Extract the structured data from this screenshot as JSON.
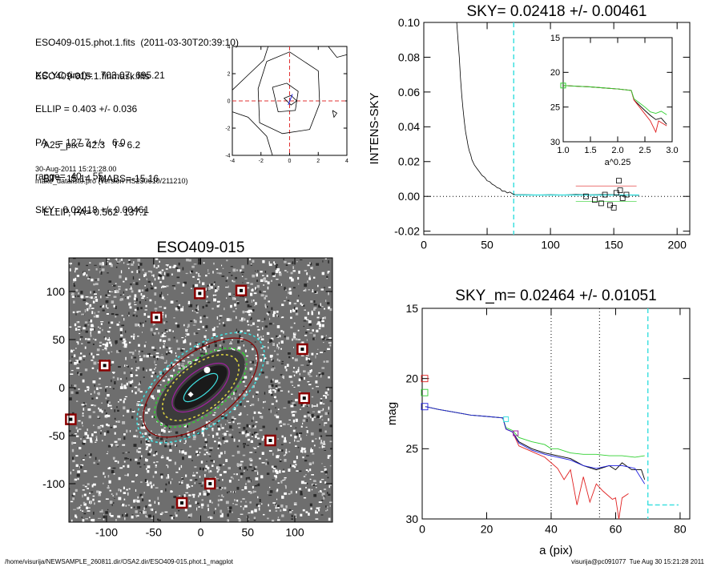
{
  "header_lines": [
    "ESO409-015.phot.1.fits  (2011-03-30T20:39:10)",
    "ESO409-015.1.finmask.fits"
  ],
  "params_lines": [
    "XC,YC (iraf)=   703.07, 695.21",
    "ELLIP = 0.403 +/- 0.036",
    "PA    = 127.7 +/-   6.0",
    "range=  40.-  55.",
    "SKY= 0.02418 +/- 0.00461"
  ],
  "results_lines": [
    "A25_pix= 42.3   T= 6.2",
    "BT=  15.14   MABS=-15.16",
    "ELLIP, PA= 0.562  137.1"
  ],
  "date_line": "30-Aug-2011 15:21:28.00",
  "program_line": "make_datalist0.pro (version HS230610/211210)",
  "footer_left": "/home/visurija/NEWSAMPLE_260811.dir/OSA2.dir/ESO409-015.phot.1_magplot",
  "footer_right": "visurija@pc091077  Tue Aug 30 15:21:28 2011",
  "colors": {
    "red": "#e02020",
    "green": "#30d030",
    "blue": "#2020e0",
    "cyan": "#40e0e0",
    "black": "#000000",
    "maroon": "#8b0000",
    "purple": "#a020a0"
  },
  "chart_data": [
    {
      "id": "contour",
      "type": "line",
      "title": "",
      "xlim": [
        -4,
        4
      ],
      "ylim": [
        -4,
        4
      ],
      "xticks": [
        -4,
        -2,
        0,
        2,
        4
      ],
      "yticks": [
        -4,
        -2,
        0,
        2,
        4
      ],
      "contours": [
        [
          [
            -1.5,
            4
          ],
          [
            -1.8,
            3
          ],
          [
            -2.8,
            2
          ],
          [
            -4,
            0.8
          ]
        ],
        [
          [
            -1.2,
            -4
          ],
          [
            -1.6,
            -2.6
          ],
          [
            -2.9,
            -1.2
          ],
          [
            -4,
            -0.8
          ]
        ],
        [
          [
            -1.6,
            2.9
          ],
          [
            0,
            3.6
          ],
          [
            2,
            2.2
          ],
          [
            2.1,
            -0.2
          ],
          [
            1.4,
            -2.1
          ],
          [
            -0.5,
            -2.4
          ],
          [
            -2.1,
            -1.6
          ],
          [
            -2.2,
            0.9
          ],
          [
            -1.6,
            2.9
          ]
        ],
        [
          [
            -1.2,
            1.0
          ],
          [
            -0.2,
            1.3
          ],
          [
            0.6,
            0.7
          ],
          [
            0.4,
            -0.7
          ],
          [
            -0.8,
            -0.8
          ],
          [
            -1.2,
            1.0
          ]
        ],
        [
          [
            -0.4,
            0.2
          ],
          [
            0.1,
            0.4
          ],
          [
            0.5,
            0
          ],
          [
            0.1,
            -0.3
          ],
          [
            -0.4,
            0.2
          ]
        ],
        [
          [
            3,
            -0.7
          ],
          [
            3.3,
            -0.9
          ],
          [
            3.1,
            -1.2
          ],
          [
            3,
            -0.7
          ]
        ],
        [
          [
            2.7,
            4
          ],
          [
            3.3,
            3.2
          ],
          [
            4,
            3.4
          ]
        ]
      ]
    },
    {
      "id": "sky",
      "type": "line",
      "title": "SKY= 0.02418 +/- 0.00461",
      "xlabel": "",
      "ylabel": "INTENS-SKY",
      "xlim": [
        0,
        210
      ],
      "ylim": [
        -0.022,
        0.1
      ],
      "xticks": [
        0,
        50,
        100,
        150,
        200
      ],
      "yticks": [
        -0.02,
        0.0,
        0.02,
        0.04,
        0.06,
        0.08,
        0.1
      ],
      "ytick_labels": [
        "-0.02",
        "0.00",
        "0.02",
        "0.04",
        "0.06",
        "0.08",
        "0.10"
      ],
      "cyan_line_x": 71,
      "profile": [
        [
          26,
          0.1
        ],
        [
          27,
          0.09
        ],
        [
          28,
          0.08
        ],
        [
          29,
          0.068
        ],
        [
          30,
          0.058
        ],
        [
          31,
          0.05
        ],
        [
          32,
          0.043
        ],
        [
          33,
          0.037
        ],
        [
          34,
          0.033
        ],
        [
          35,
          0.029
        ],
        [
          36,
          0.026
        ],
        [
          37,
          0.024
        ],
        [
          38,
          0.021
        ],
        [
          40,
          0.018
        ],
        [
          42,
          0.016
        ],
        [
          44,
          0.014
        ],
        [
          46,
          0.012
        ],
        [
          48,
          0.011
        ],
        [
          50,
          0.009
        ],
        [
          52,
          0.0085
        ],
        [
          54,
          0.007
        ],
        [
          56,
          0.0062
        ],
        [
          58,
          0.005
        ],
        [
          60,
          0.0045
        ],
        [
          62,
          0.003
        ],
        [
          64,
          0.003
        ],
        [
          66,
          0.002
        ],
        [
          68,
          0.0025
        ],
        [
          70,
          0.0015
        ],
        [
          72,
          0.001
        ],
        [
          80,
          0.001
        ],
        [
          90,
          0.0008
        ],
        [
          100,
          0.001
        ],
        [
          110,
          0.0008
        ],
        [
          120,
          0.0012
        ],
        [
          130,
          0.0009
        ],
        [
          140,
          0.0011
        ],
        [
          150,
          0.001
        ],
        [
          160,
          0.0008
        ],
        [
          170,
          0.0005
        ]
      ],
      "sky_squares": [
        [
          128,
          0.0
        ],
        [
          135,
          -0.002
        ],
        [
          140,
          -0.004
        ],
        [
          143,
          0.001
        ],
        [
          147,
          -0.005
        ],
        [
          150,
          -0.0065
        ],
        [
          152,
          0.002
        ],
        [
          155,
          0.0035
        ],
        [
          157,
          -0.001
        ],
        [
          160,
          0.001
        ],
        [
          154,
          0.009
        ]
      ],
      "inset": {
        "xlabel": "a^0.25",
        "xlim": [
          1.0,
          3.0
        ],
        "ylim": [
          30,
          15
        ],
        "xticks": [
          1.0,
          1.5,
          2.0,
          2.5,
          3.0
        ],
        "xtick_labels": [
          "1.0",
          "1.5",
          "2.0",
          "2.5",
          "3.0"
        ],
        "yticks": [
          15,
          20,
          25,
          30
        ],
        "series": [
          {
            "color": "black",
            "points": [
              [
                1.0,
                21.9
              ],
              [
                1.5,
                22.1
              ],
              [
                2.0,
                22.4
              ],
              [
                2.25,
                22.6
              ],
              [
                2.3,
                24
              ],
              [
                2.5,
                25.5
              ],
              [
                2.6,
                26.2
              ],
              [
                2.7,
                26.8
              ],
              [
                2.8,
                26.6
              ],
              [
                2.9,
                27.5
              ]
            ]
          },
          {
            "color": "red",
            "points": [
              [
                1.0,
                21.9
              ],
              [
                1.5,
                22.1
              ],
              [
                2.0,
                22.4
              ],
              [
                2.25,
                22.6
              ],
              [
                2.3,
                24
              ],
              [
                2.5,
                26
              ],
              [
                2.6,
                27
              ],
              [
                2.7,
                28.6
              ],
              [
                2.75,
                27
              ],
              [
                2.9,
                27.7
              ]
            ]
          },
          {
            "color": "green",
            "points": [
              [
                1.0,
                21.9
              ],
              [
                1.5,
                22.1
              ],
              [
                2.0,
                22.4
              ],
              [
                2.25,
                22.6
              ],
              [
                2.3,
                23.8
              ],
              [
                2.5,
                25
              ],
              [
                2.6,
                25.7
              ],
              [
                2.7,
                25.9
              ],
              [
                2.8,
                25.6
              ],
              [
                2.9,
                26.1
              ]
            ]
          }
        ]
      }
    },
    {
      "id": "image",
      "type": "scatter",
      "title": "ESO409-015",
      "xlim": [
        -140,
        140
      ],
      "ylim": [
        -140,
        135
      ],
      "xticks": [
        -100,
        -50,
        0,
        50,
        100
      ],
      "yticks": [
        -100,
        -50,
        0,
        50,
        100
      ],
      "mask_squares": [
        [
          -1,
          98
        ],
        [
          43,
          101
        ],
        [
          -47,
          73
        ],
        [
          -102,
          23
        ],
        [
          108,
          40
        ],
        [
          110,
          -11
        ],
        [
          -138,
          -33
        ],
        [
          74,
          -55
        ],
        [
          10,
          -100
        ],
        [
          -20,
          -120
        ]
      ],
      "ellipses": [
        {
          "a": 80,
          "b": 40,
          "angle": 38,
          "color": "cyan",
          "dash": true
        },
        {
          "a": 72,
          "b": 36,
          "angle": 38,
          "color": "maroon",
          "dash": false
        },
        {
          "a": 58,
          "b": 28,
          "angle": 38,
          "color": "green",
          "dash": true
        },
        {
          "a": 48,
          "b": 24,
          "angle": 38,
          "color": "yellow",
          "dash": true
        },
        {
          "a": 36,
          "b": 17,
          "angle": 38,
          "color": "purple",
          "dash": false
        },
        {
          "a": 22,
          "b": 8,
          "angle": 38,
          "color": "cyan",
          "dash": false
        }
      ]
    },
    {
      "id": "mag",
      "type": "line",
      "title": "SKY_m=  0.02464 +/- 0.01051",
      "xlabel": "a (pix)",
      "ylabel": "mag",
      "xlim": [
        0,
        83
      ],
      "ylim": [
        30,
        15
      ],
      "xticks": [
        0,
        20,
        40,
        60,
        80
      ],
      "yticks": [
        15,
        20,
        25,
        30
      ],
      "dotted_x": [
        40,
        55
      ],
      "cyan_line_x": 70,
      "cyan_sky_mag": 29,
      "start_squares": [
        {
          "color": "red",
          "y": 20.0
        },
        {
          "color": "green",
          "y": 21.0
        },
        {
          "color": "blue",
          "y": 22.0
        }
      ],
      "series": [
        {
          "color": "black",
          "points": [
            [
              1,
              22.0
            ],
            [
              5,
              22.2
            ],
            [
              10,
              22.4
            ],
            [
              15,
              22.6
            ],
            [
              20,
              22.7
            ],
            [
              25,
              22.8
            ],
            [
              26,
              23.6
            ],
            [
              28,
              23.8
            ],
            [
              30,
              24.5
            ],
            [
              34,
              25.0
            ],
            [
              38,
              25.3
            ],
            [
              42,
              25.5
            ],
            [
              46,
              25.7
            ],
            [
              50,
              26.2
            ],
            [
              54,
              26.5
            ],
            [
              58,
              26.2
            ],
            [
              60,
              26.5
            ],
            [
              62,
              26.0
            ],
            [
              65,
              26.5
            ],
            [
              68,
              26.5
            ],
            [
              69,
              27.2
            ]
          ]
        },
        {
          "color": "red",
          "points": [
            [
              1,
              22.0
            ],
            [
              5,
              22.2
            ],
            [
              10,
              22.4
            ],
            [
              15,
              22.6
            ],
            [
              20,
              22.7
            ],
            [
              25,
              22.8
            ],
            [
              26,
              23.6
            ],
            [
              28,
              23.8
            ],
            [
              30,
              24.8
            ],
            [
              34,
              25.2
            ],
            [
              38,
              25.6
            ],
            [
              40,
              26.0
            ],
            [
              42,
              26.4
            ],
            [
              44,
              27.2
            ],
            [
              46,
              26.5
            ],
            [
              48,
              29.0
            ],
            [
              50,
              27.0
            ],
            [
              52,
              28.8
            ],
            [
              54,
              27.5
            ],
            [
              56,
              28.0
            ],
            [
              59,
              28.6
            ],
            [
              60,
              28.5
            ],
            [
              61,
              30
            ],
            [
              62,
              28.5
            ],
            [
              64,
              28.2
            ]
          ]
        },
        {
          "color": "green",
          "points": [
            [
              1,
              22.0
            ],
            [
              5,
              22.2
            ],
            [
              10,
              22.4
            ],
            [
              15,
              22.6
            ],
            [
              20,
              22.7
            ],
            [
              25,
              22.8
            ],
            [
              26,
              23.5
            ],
            [
              28,
              23.7
            ],
            [
              30,
              24.2
            ],
            [
              34,
              24.5
            ],
            [
              38,
              24.7
            ],
            [
              40,
              25.0
            ],
            [
              42,
              25.0
            ],
            [
              46,
              25.3
            ],
            [
              50,
              25.4
            ],
            [
              54,
              25.4
            ],
            [
              58,
              25.5
            ],
            [
              62,
              25.5
            ],
            [
              66,
              25.6
            ],
            [
              69,
              25.5
            ]
          ]
        },
        {
          "color": "blue",
          "points": [
            [
              1,
              22.0
            ],
            [
              5,
              22.2
            ],
            [
              10,
              22.4
            ],
            [
              15,
              22.6
            ],
            [
              20,
              22.7
            ],
            [
              25,
              22.8
            ],
            [
              26,
              23.6
            ],
            [
              28,
              23.8
            ],
            [
              30,
              24.6
            ],
            [
              34,
              25.1
            ],
            [
              38,
              25.4
            ],
            [
              42,
              25.6
            ],
            [
              46,
              25.8
            ],
            [
              50,
              26.2
            ],
            [
              54,
              26.4
            ],
            [
              58,
              26.2
            ],
            [
              62,
              26.2
            ],
            [
              66,
              26.4
            ],
            [
              69,
              27.5
            ]
          ]
        }
      ],
      "markers": [
        {
          "x": 26,
          "y": 22.9,
          "color": "cyan"
        },
        {
          "x": 29,
          "y": 23.9,
          "color": "purple"
        }
      ]
    }
  ]
}
